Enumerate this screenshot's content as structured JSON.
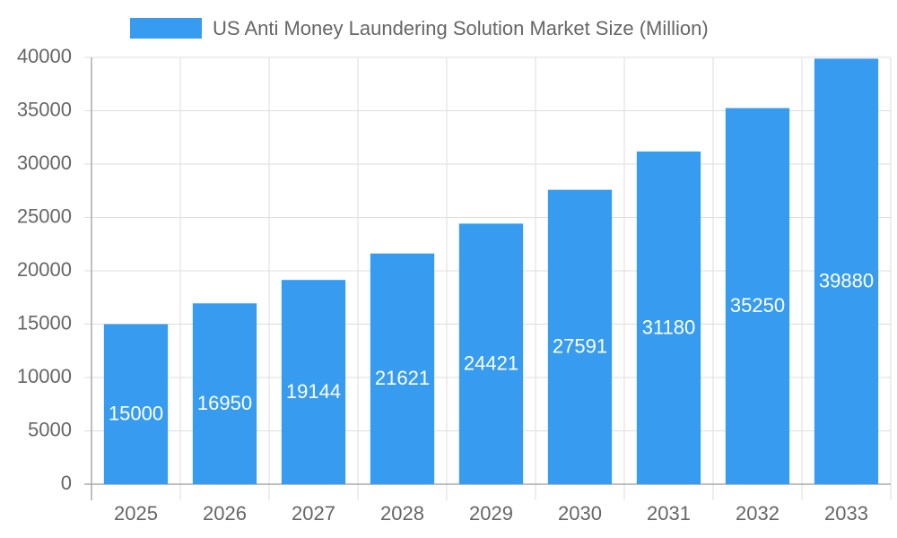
{
  "chart_data": {
    "type": "bar",
    "legend_label": "US Anti Money Laundering Solution Market Size (Million)",
    "categories": [
      "2025",
      "2026",
      "2027",
      "2028",
      "2029",
      "2030",
      "2031",
      "2032",
      "2033"
    ],
    "values": [
      15000,
      16950,
      19144,
      21621,
      24421,
      27591,
      31180,
      35250,
      39880
    ],
    "color": "#379cf0",
    "ylim": [
      0,
      40000
    ],
    "yticks": [
      0,
      5000,
      10000,
      15000,
      20000,
      25000,
      30000,
      35000,
      40000
    ],
    "grid": true
  }
}
